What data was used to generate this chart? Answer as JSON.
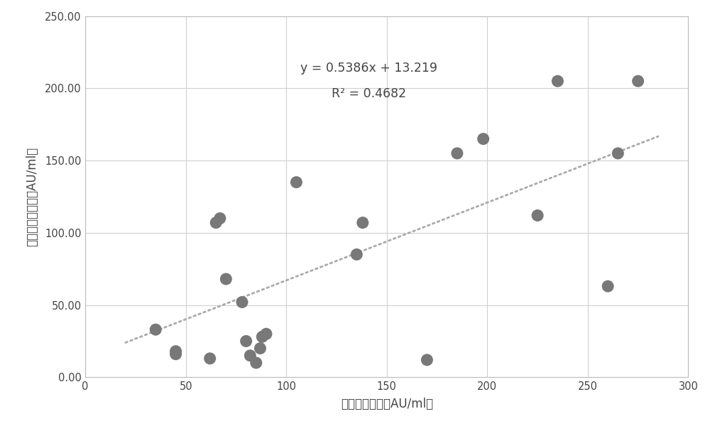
{
  "x_data": [
    35,
    45,
    45,
    62,
    65,
    67,
    70,
    78,
    80,
    82,
    85,
    87,
    88,
    90,
    105,
    135,
    138,
    170,
    185,
    198,
    225,
    235,
    260,
    265,
    275
  ],
  "y_data": [
    33,
    18,
    16,
    13,
    107,
    110,
    68,
    52,
    25,
    15,
    10,
    20,
    28,
    30,
    135,
    85,
    107,
    12,
    155,
    165,
    112,
    205,
    63,
    155,
    205
  ],
  "slope": 0.5386,
  "intercept": 13.219,
  "r_squared": 0.4682,
  "equation_text": "y = 0.5386x + 13.219",
  "r2_text": "R² = 0.4682",
  "xlabel": "对照试剂测値（AU/ml）",
  "ylabel": "条件五方法测値（AU/ml）",
  "xlim": [
    0,
    300
  ],
  "ylim": [
    0,
    250
  ],
  "xticks": [
    0,
    50,
    100,
    150,
    200,
    250,
    300
  ],
  "yticks": [
    0.0,
    50.0,
    100.0,
    150.0,
    200.0,
    250.0
  ],
  "ytick_labels": [
    "0.00",
    "50.00",
    "100.00",
    "150.00",
    "200.00",
    "250.00"
  ],
  "dot_color": "#787878",
  "line_color": "#aaaaaa",
  "bg_color": "#ffffff",
  "grid_color": "#d0d0d0",
  "line_x_start": 20,
  "line_x_end": 285,
  "fig_width": 10.0,
  "fig_height": 6.07
}
